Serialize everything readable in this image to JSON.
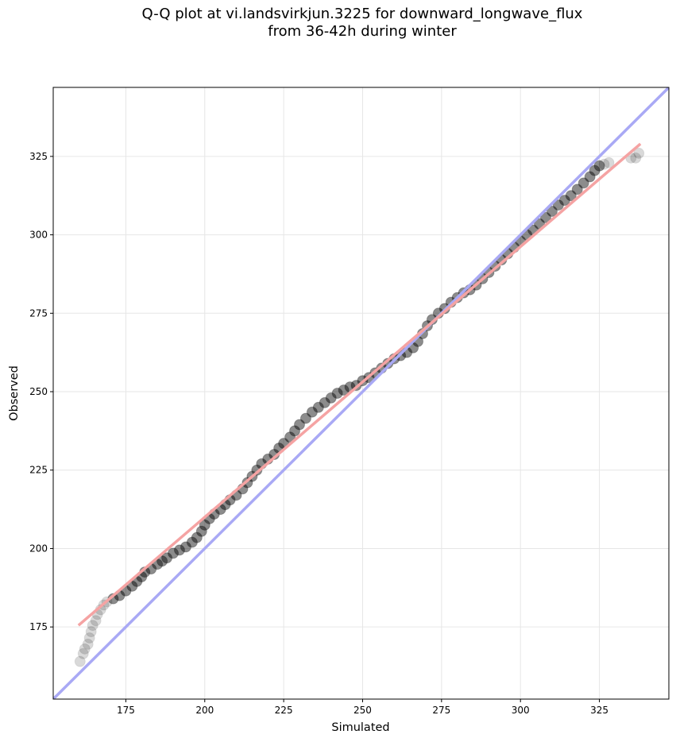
{
  "chart_data": {
    "type": "scatter",
    "title_line1": "Q-Q plot at vi.landsvirkjun.3225 for downward_longwave_flux",
    "title_line2": "from 36-42h during winter",
    "xlabel": "Simulated",
    "ylabel": "Observed",
    "xlim": [
      152,
      347
    ],
    "ylim": [
      152,
      347
    ],
    "xticks": [
      175,
      200,
      225,
      250,
      275,
      300,
      325
    ],
    "yticks": [
      175,
      200,
      225,
      250,
      275,
      300,
      325
    ],
    "grid": true,
    "reference_line": {
      "label": "1:1 line",
      "color": "#a9a9f5",
      "from": [
        152,
        152
      ],
      "to": [
        347,
        347
      ]
    },
    "fit_line": {
      "color": "#f5a3a3",
      "from": [
        160,
        175.5
      ],
      "to": [
        338,
        329
      ]
    },
    "point_color": "#000000",
    "point_opacity_outer": 0.15,
    "point_opacity_inner": 0.45,
    "points": [
      [
        160.5,
        164
      ],
      [
        161.5,
        166.5
      ],
      [
        162,
        168
      ],
      [
        163,
        169.5
      ],
      [
        163.5,
        171.5
      ],
      [
        164,
        173.5
      ],
      [
        164.5,
        175.5
      ],
      [
        165.5,
        177
      ],
      [
        166,
        179
      ],
      [
        167,
        180.5
      ],
      [
        168,
        182
      ],
      [
        169,
        183
      ],
      [
        171,
        184
      ],
      [
        173,
        185
      ],
      [
        175,
        186.5
      ],
      [
        177,
        188
      ],
      [
        178.5,
        189.5
      ],
      [
        180,
        191
      ],
      [
        181,
        192.5
      ],
      [
        183,
        193.5
      ],
      [
        185,
        195
      ],
      [
        186.5,
        196
      ],
      [
        188,
        197
      ],
      [
        190,
        198.5
      ],
      [
        192,
        199.5
      ],
      [
        194,
        200.5
      ],
      [
        196,
        202
      ],
      [
        197.5,
        203.5
      ],
      [
        199,
        205.5
      ],
      [
        200,
        207.5
      ],
      [
        201.5,
        209.5
      ],
      [
        203,
        211
      ],
      [
        205,
        212.5
      ],
      [
        206.5,
        214
      ],
      [
        208,
        215.5
      ],
      [
        210,
        217
      ],
      [
        212,
        219
      ],
      [
        213.5,
        221
      ],
      [
        215,
        223
      ],
      [
        216.5,
        225
      ],
      [
        218,
        227
      ],
      [
        220,
        228.5
      ],
      [
        222,
        230
      ],
      [
        223.5,
        232
      ],
      [
        225,
        233.5
      ],
      [
        227,
        235.5
      ],
      [
        228.5,
        237.5
      ],
      [
        230,
        239.5
      ],
      [
        232,
        241.5
      ],
      [
        234,
        243.5
      ],
      [
        236,
        245
      ],
      [
        238,
        246.5
      ],
      [
        240,
        248
      ],
      [
        242,
        249.5
      ],
      [
        244,
        250.5
      ],
      [
        246,
        251.5
      ],
      [
        248,
        252
      ],
      [
        250,
        253.5
      ],
      [
        252,
        254.5
      ],
      [
        254,
        256
      ],
      [
        256,
        257.5
      ],
      [
        258,
        259
      ],
      [
        260,
        260.5
      ],
      [
        262,
        261.5
      ],
      [
        264,
        262.5
      ],
      [
        266,
        264
      ],
      [
        267.5,
        266
      ],
      [
        269,
        268.5
      ],
      [
        270.5,
        271
      ],
      [
        272,
        273
      ],
      [
        274,
        275
      ],
      [
        276,
        276.5
      ],
      [
        278,
        278.5
      ],
      [
        280,
        280
      ],
      [
        282,
        281.5
      ],
      [
        284,
        282.5
      ],
      [
        286,
        284
      ],
      [
        288,
        286
      ],
      [
        290,
        288
      ],
      [
        292,
        290
      ],
      [
        294,
        292
      ],
      [
        296,
        294
      ],
      [
        298,
        296
      ],
      [
        300,
        298
      ],
      [
        302,
        300
      ],
      [
        304,
        301.5
      ],
      [
        306,
        303.5
      ],
      [
        308,
        305.5
      ],
      [
        310,
        307.5
      ],
      [
        312,
        309.5
      ],
      [
        314,
        311
      ],
      [
        316,
        312.5
      ],
      [
        318,
        314.5
      ],
      [
        320,
        316.5
      ],
      [
        322,
        318.5
      ],
      [
        323.5,
        320.5
      ],
      [
        325,
        322
      ],
      [
        326.5,
        322.5
      ],
      [
        328,
        323
      ],
      [
        335,
        324.5
      ],
      [
        336.5,
        324.5
      ],
      [
        337.5,
        326
      ]
    ]
  }
}
